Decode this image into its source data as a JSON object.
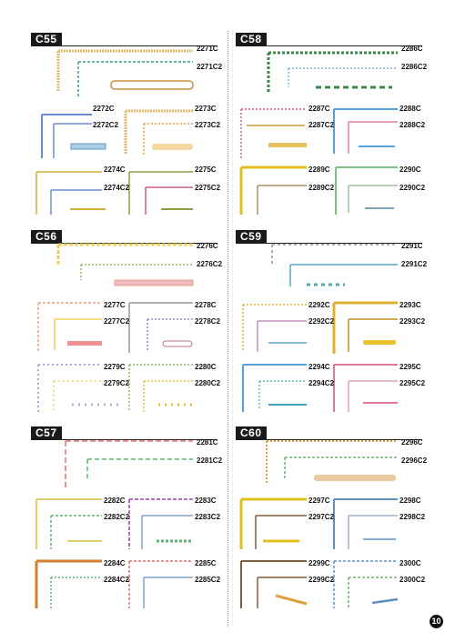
{
  "page_number": "10",
  "sections": [
    {
      "code": "C55",
      "items": [
        {
          "labels": [
            "2271C",
            "2271C2"
          ]
        },
        {
          "labels": [
            "2272C",
            "2272C2"
          ]
        },
        {
          "labels": [
            "2273C",
            "2273C2"
          ]
        },
        {
          "labels": [
            "2274C",
            "2274C2"
          ]
        },
        {
          "labels": [
            "2275C",
            "2275C2"
          ]
        }
      ]
    },
    {
      "code": "C58",
      "items": [
        {
          "labels": [
            "2286C",
            "2286C2"
          ]
        },
        {
          "labels": [
            "2287C",
            "2287C2"
          ]
        },
        {
          "labels": [
            "2288C",
            "2288C2"
          ]
        },
        {
          "labels": [
            "2289C",
            "2289C2"
          ]
        },
        {
          "labels": [
            "2290C",
            "2290C2"
          ]
        }
      ]
    },
    {
      "code": "C56",
      "items": [
        {
          "labels": [
            "2276C",
            "2276C2"
          ]
        },
        {
          "labels": [
            "2277C",
            "2277C2"
          ]
        },
        {
          "labels": [
            "2278C",
            "2278C2"
          ]
        },
        {
          "labels": [
            "2279C",
            "2279C2"
          ]
        },
        {
          "labels": [
            "2280C",
            "2280C2"
          ]
        }
      ]
    },
    {
      "code": "C59",
      "items": [
        {
          "labels": [
            "2291C",
            "2291C2"
          ]
        },
        {
          "labels": [
            "2292C",
            "2292C2"
          ]
        },
        {
          "labels": [
            "2293C",
            "2293C2"
          ]
        },
        {
          "labels": [
            "2294C",
            "2294C2"
          ]
        },
        {
          "labels": [
            "2295C",
            "2295C2"
          ]
        }
      ]
    },
    {
      "code": "C57",
      "items": [
        {
          "labels": [
            "2281C",
            "2281C2"
          ]
        },
        {
          "labels": [
            "2282C",
            "2282C2"
          ]
        },
        {
          "labels": [
            "2283C",
            "2283C2"
          ]
        },
        {
          "labels": [
            "2284C",
            "2284C2"
          ]
        },
        {
          "labels": [
            "2285C",
            "2285C2"
          ]
        }
      ]
    },
    {
      "code": "C60",
      "items": [
        {
          "labels": [
            "2296C",
            "2296C2"
          ]
        },
        {
          "labels": [
            "2297C",
            "2297C2"
          ]
        },
        {
          "labels": [
            "2298C",
            "2298C2"
          ]
        },
        {
          "labels": [
            "2299C",
            "2299C2"
          ]
        },
        {
          "labels": [
            "2300C",
            "2300C2"
          ]
        }
      ]
    }
  ],
  "colors": {
    "c55": [
      "#e6b86a",
      "#5fb8a8",
      "#6a8fd0",
      "#d4b23a"
    ],
    "c58": [
      "#3b8a4a",
      "#e05a7a",
      "#5aa0d8",
      "#e0c020"
    ],
    "c56": [
      "#e8a080",
      "#f0d060",
      "#9a88c8",
      "#88b860"
    ],
    "c59": [
      "#58a8b8",
      "#e0b030",
      "#d05070",
      "#60c090"
    ],
    "c57": [
      "#e07070",
      "#60b070",
      "#b070c0",
      "#d08030"
    ],
    "c60": [
      "#e0a040",
      "#70b070",
      "#6090c0",
      "#806040"
    ]
  }
}
